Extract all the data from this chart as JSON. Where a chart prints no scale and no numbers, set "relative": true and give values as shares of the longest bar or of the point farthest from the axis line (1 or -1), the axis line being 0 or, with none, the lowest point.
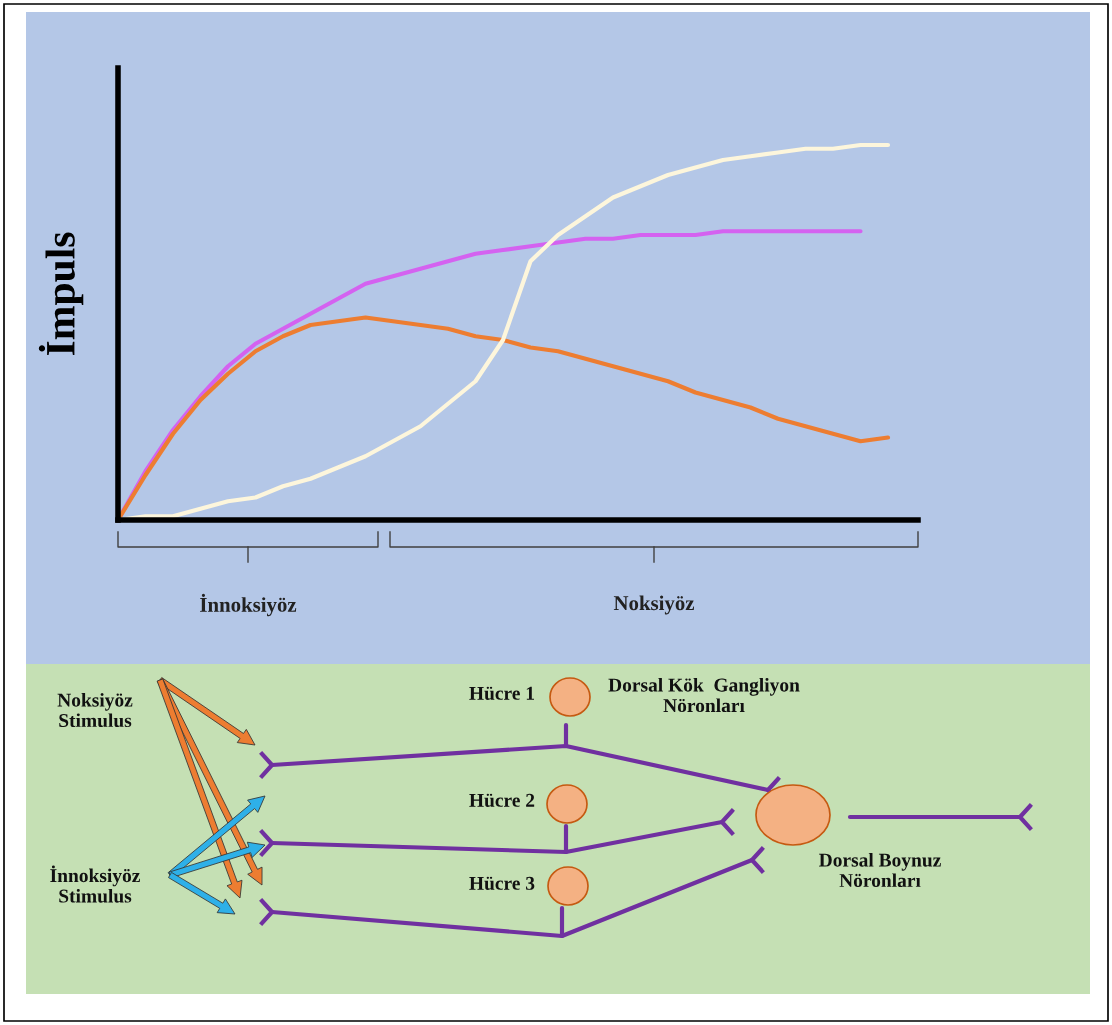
{
  "chart_data": [
    {
      "type": "line",
      "ylabel": "İmpuls",
      "relative": true,
      "grid": false,
      "legend": false,
      "marker": "none",
      "line_style": "solid",
      "categories": [
        null,
        null,
        null,
        null,
        null,
        null,
        null,
        null,
        null,
        null,
        null,
        null,
        null,
        null,
        null,
        null,
        null,
        null,
        null,
        null,
        null,
        null,
        null,
        null,
        null,
        null,
        null,
        null,
        null
      ],
      "series": [
        {
          "color": "#d462f0",
          "values": [
            0,
            0.13,
            0.24,
            0.33,
            0.41,
            0.47,
            0.51,
            0.55,
            0.59,
            0.63,
            0.65,
            0.67,
            0.69,
            0.71,
            0.72,
            0.73,
            0.74,
            0.75,
            0.75,
            0.76,
            0.76,
            0.76,
            0.77,
            0.77,
            0.77,
            0.77,
            0.77,
            0.77,
            null
          ]
        },
        {
          "color": "#ed7d31",
          "values": [
            0,
            0.12,
            0.23,
            0.32,
            0.39,
            0.45,
            0.49,
            0.52,
            0.53,
            0.54,
            0.53,
            0.52,
            0.51,
            0.49,
            0.48,
            0.46,
            0.45,
            0.43,
            0.41,
            0.39,
            0.37,
            0.34,
            0.32,
            0.3,
            0.27,
            0.25,
            0.23,
            0.21,
            0.22
          ]
        },
        {
          "color": "#fdf6dc",
          "values": [
            0,
            0.01,
            0.01,
            0.03,
            0.05,
            0.06,
            0.09,
            0.11,
            0.14,
            0.17,
            0.21,
            0.25,
            0.31,
            0.37,
            0.48,
            0.69,
            0.76,
            0.81,
            0.86,
            0.89,
            0.92,
            0.94,
            0.96,
            0.97,
            0.98,
            0.99,
            0.99,
            1.0,
            1.0
          ]
        }
      ],
      "annotations": [
        "İnnoksiyöz",
        "Noksiyöz"
      ]
    },
    {
      "type": "other",
      "annotations": [
        "Noksiyöz\nStimulus",
        "İnnoksiyöz\nStimulus",
        "Hücre 1",
        "Hücre 2",
        "Hücre 3",
        "Dorsal Kök  Gangliyon\nNöronları",
        "Dorsal Boynuz\nNöronları"
      ]
    }
  ]
}
